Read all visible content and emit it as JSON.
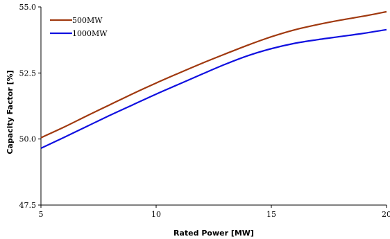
{
  "chart_data": {
    "type": "line",
    "xlabel": "Rated Power [MW]",
    "ylabel": "Capacity Factor [%]",
    "xlim": [
      5,
      20
    ],
    "ylim": [
      47.5,
      55.0
    ],
    "x_ticks": [
      "5",
      "10",
      "15",
      "20"
    ],
    "y_ticks": [
      "47.5",
      "50.0",
      "52.5",
      "55.0"
    ],
    "grid": false,
    "legend_position": "top-left",
    "series": [
      {
        "name": "500MW",
        "color": "#a0390f",
        "x": [
          5,
          6,
          7,
          8,
          9,
          10,
          11,
          12,
          13,
          14,
          15,
          16,
          17,
          18,
          19,
          20
        ],
        "y": [
          50.05,
          50.45,
          50.88,
          51.3,
          51.72,
          52.12,
          52.5,
          52.87,
          53.22,
          53.56,
          53.87,
          54.13,
          54.33,
          54.5,
          54.65,
          54.82
        ]
      },
      {
        "name": "1000MW",
        "color": "#1010e0",
        "x": [
          5,
          6,
          7,
          8,
          9,
          10,
          11,
          12,
          13,
          14,
          15,
          16,
          17,
          18,
          19,
          20
        ],
        "y": [
          49.65,
          50.06,
          50.48,
          50.9,
          51.3,
          51.7,
          52.08,
          52.46,
          52.83,
          53.16,
          53.42,
          53.62,
          53.76,
          53.88,
          54.0,
          54.14
        ]
      }
    ]
  }
}
